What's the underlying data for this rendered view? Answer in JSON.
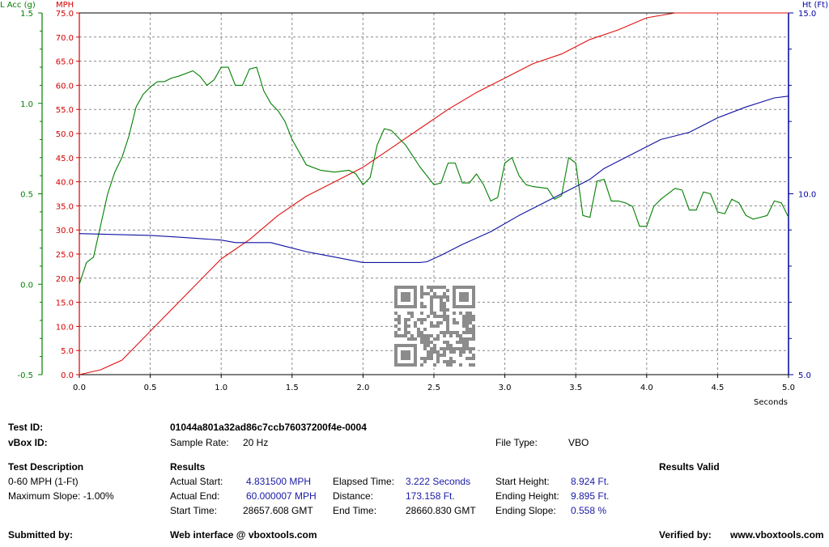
{
  "chart_data": {
    "type": "line",
    "x_axis": {
      "label": "Seconds",
      "range": [
        0,
        5
      ],
      "ticks": [
        "0.0",
        "0.5",
        "1.0",
        "1.5",
        "2.0",
        "2.5",
        "3.0",
        "3.5",
        "4.0",
        "4.5",
        "5.0"
      ]
    },
    "axes": {
      "lacc": {
        "label": "L Acc (g)",
        "range": [
          -0.5,
          1.5
        ],
        "ticks": [
          "1.5",
          "1.0",
          "0.5",
          "0.0",
          "-0.5"
        ],
        "color": "#008000"
      },
      "mph": {
        "label": "MPH",
        "range": [
          0,
          75
        ],
        "ticks": [
          "75.0",
          "70.0",
          "65.0",
          "60.0",
          "55.0",
          "50.0",
          "45.0",
          "40.0",
          "35.0",
          "30.0",
          "25.0",
          "20.0",
          "15.0",
          "10.0",
          "5.0",
          "0.0"
        ],
        "color": "#d40000"
      },
      "ht": {
        "label": "Ht (Ft)",
        "range": [
          5,
          15
        ],
        "ticks": [
          "15.0",
          "10.0",
          "5.0"
        ],
        "color": "#0000a0"
      }
    },
    "grid": true,
    "series": [
      {
        "axis": "mph",
        "color": "#e01010",
        "x": [
          0,
          0.15,
          0.3,
          0.5,
          0.7,
          0.9,
          1.0,
          1.2,
          1.4,
          1.6,
          1.8,
          2.0,
          2.2,
          2.4,
          2.6,
          2.8,
          3.0,
          3.2,
          3.4,
          3.6,
          3.8,
          4.0,
          4.2,
          4.4,
          4.6,
          4.8,
          5.0
        ],
        "y": [
          0,
          1,
          3,
          9,
          15,
          21,
          24,
          28,
          33,
          37,
          40,
          43,
          47,
          51,
          55,
          58.5,
          61.5,
          64.5,
          66.5,
          69.5,
          71.5,
          74,
          76.5,
          78.5,
          80.5,
          82,
          84
        ]
      },
      {
        "axis": "lacc",
        "color": "#008000",
        "x": [
          0,
          0.05,
          0.1,
          0.2,
          0.25,
          0.3,
          0.35,
          0.4,
          0.45,
          0.5,
          0.55,
          0.6,
          0.65,
          0.7,
          0.8,
          0.85,
          0.9,
          0.95,
          1.0,
          1.05,
          1.1,
          1.15,
          1.2,
          1.25,
          1.3,
          1.35,
          1.4,
          1.45,
          1.5,
          1.6,
          1.7,
          1.8,
          1.9,
          1.95,
          2.0,
          2.05,
          2.1,
          2.15,
          2.2,
          2.3,
          2.4,
          2.5,
          2.55,
          2.6,
          2.65,
          2.7,
          2.75,
          2.8,
          2.85,
          2.9,
          2.95,
          3.0,
          3.05,
          3.1,
          3.15,
          3.2,
          3.3,
          3.35,
          3.4,
          3.45,
          3.5,
          3.55,
          3.6,
          3.65,
          3.7,
          3.75,
          3.8,
          3.85,
          3.9,
          3.95,
          4.0,
          4.05,
          4.1,
          4.2,
          4.25,
          4.3,
          4.35,
          4.4,
          4.45,
          4.5,
          4.55,
          4.6,
          4.65,
          4.7,
          4.75,
          4.8,
          4.85,
          4.9,
          4.95,
          5.0
        ],
        "y": [
          0,
          0.12,
          0.15,
          0.5,
          0.62,
          0.7,
          0.82,
          0.98,
          1.05,
          1.09,
          1.12,
          1.12,
          1.14,
          1.15,
          1.18,
          1.15,
          1.1,
          1.13,
          1.2,
          1.2,
          1.1,
          1.1,
          1.19,
          1.2,
          1.07,
          1.0,
          0.96,
          0.9,
          0.8,
          0.66,
          0.63,
          0.62,
          0.63,
          0.61,
          0.55,
          0.59,
          0.77,
          0.86,
          0.85,
          0.77,
          0.65,
          0.55,
          0.56,
          0.67,
          0.67,
          0.56,
          0.56,
          0.61,
          0.55,
          0.46,
          0.48,
          0.67,
          0.7,
          0.6,
          0.55,
          0.54,
          0.53,
          0.47,
          0.49,
          0.7,
          0.67,
          0.38,
          0.37,
          0.57,
          0.58,
          0.46,
          0.46,
          0.45,
          0.43,
          0.32,
          0.32,
          0.43,
          0.47,
          0.53,
          0.52,
          0.41,
          0.41,
          0.51,
          0.5,
          0.4,
          0.39,
          0.47,
          0.45,
          0.38,
          0.36,
          0.37,
          0.38,
          0.46,
          0.45,
          0.37
        ]
      },
      {
        "axis": "ht",
        "color": "#1010a0",
        "x": [
          0,
          0.5,
          0.7,
          1.0,
          1.1,
          1.2,
          1.35,
          1.45,
          1.6,
          1.8,
          2.0,
          2.2,
          2.4,
          2.45,
          2.55,
          2.7,
          2.9,
          3.1,
          3.3,
          3.5,
          3.6,
          3.7,
          3.9,
          4.1,
          4.2,
          4.3,
          4.4,
          4.5,
          4.7,
          4.9,
          5.0
        ],
        "y": [
          8.9,
          8.85,
          8.8,
          8.72,
          8.65,
          8.65,
          8.65,
          8.55,
          8.4,
          8.25,
          8.1,
          8.1,
          8.1,
          8.12,
          8.3,
          8.6,
          8.95,
          9.4,
          9.8,
          10.2,
          10.4,
          10.7,
          11.1,
          11.5,
          11.6,
          11.7,
          11.9,
          12.1,
          12.4,
          12.65,
          12.7
        ]
      }
    ]
  },
  "labels": {
    "test_id_label": "Test ID:",
    "test_id_value": "01044a801a32ad86c7ccb76037200f4e-0004",
    "vbox_id_label": "vBox ID:",
    "sample_rate_label": "Sample Rate:",
    "sample_rate_value": "20 Hz",
    "file_type_label": "File Type:",
    "file_type_value": "VBO",
    "test_description_label": "Test Description",
    "test_description_line1": "0-60 MPH (1-Ft)",
    "test_description_line2": "Maximum Slope:  -1.00%",
    "results_label": "Results",
    "results_valid_label": "Results Valid",
    "actual_start_label": "Actual Start:",
    "actual_start_value": "4.831500 MPH",
    "actual_end_label": "Actual End:",
    "actual_end_value": "60.000007 MPH",
    "start_time_label": "Start Time:",
    "start_time_value": "28657.608 GMT",
    "elapsed_time_label": "Elapsed Time:",
    "elapsed_time_value": "3.222 Seconds",
    "distance_label": "Distance:",
    "distance_value": "173.158 Ft.",
    "end_time_label": "End Time:",
    "end_time_value": "28660.830 GMT",
    "start_height_label": "Start Height:",
    "start_height_value": "8.924 Ft.",
    "ending_height_label": "Ending Height:",
    "ending_height_value": "9.895 Ft.",
    "ending_slope_label": "Ending Slope:",
    "ending_slope_value": "0.558 %",
    "submitted_by_label": "Submitted by:",
    "web_interface_label": "Web interface @ vboxtools.com",
    "verified_by_label": "Verified by:",
    "verified_by_value": "www.vboxtools.com"
  }
}
